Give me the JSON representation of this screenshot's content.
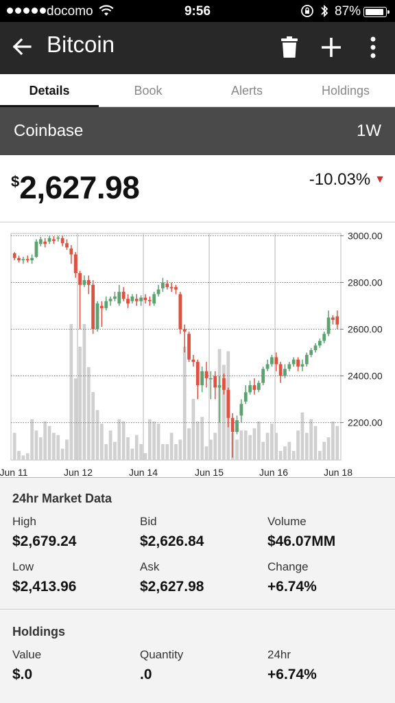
{
  "status": {
    "carrier": "docomo",
    "time": "9:56",
    "battery": "87%",
    "battery_level": 0.87
  },
  "header": {
    "title": "Bitcoin",
    "icons": [
      "back-arrow-icon",
      "trash-icon",
      "plus-icon",
      "more-vertical-icon"
    ]
  },
  "tabs": [
    {
      "label": "Details",
      "active": true
    },
    {
      "label": "Book",
      "active": false
    },
    {
      "label": "Alerts",
      "active": false
    },
    {
      "label": "Holdings",
      "active": false
    }
  ],
  "exchange": {
    "name": "Coinbase",
    "range": "1W"
  },
  "price": {
    "currency": "$",
    "value": "2,627.98",
    "change": "-10.03%",
    "direction": "down"
  },
  "colors": {
    "up": "#5aa36e",
    "down": "#e0503e",
    "volume": "#d0d0d0",
    "header": "#282828",
    "exchange_bar": "#4a4a4a"
  },
  "chart_data": {
    "type": "candlestick",
    "y_ticks": [
      "3000.00",
      "2800.00",
      "2600.00",
      "2400.00",
      "2200.00"
    ],
    "ylim": [
      2040,
      3010
    ],
    "x_tick_labels": [
      "Jun 11",
      "Jun 12",
      "Jun 14",
      "Jun 15",
      "Jun 16",
      "Jun 18"
    ],
    "grid": true,
    "candles": [
      [
        2925,
        2905,
        2930,
        2895
      ],
      [
        2905,
        2895,
        2915,
        2885
      ],
      [
        2895,
        2900,
        2910,
        2880
      ],
      [
        2900,
        2895,
        2915,
        2885
      ],
      [
        2895,
        2905,
        2920,
        2880
      ],
      [
        2910,
        2975,
        2985,
        2905
      ],
      [
        2965,
        2985,
        2995,
        2955
      ],
      [
        2975,
        2965,
        2990,
        2950
      ],
      [
        2975,
        2990,
        3000,
        2965
      ],
      [
        2985,
        2978,
        2998,
        2965
      ],
      [
        2988,
        2992,
        3000,
        2975
      ],
      [
        2990,
        2968,
        3000,
        2955
      ],
      [
        2968,
        2950,
        2985,
        2940
      ],
      [
        2945,
        2920,
        2960,
        2880
      ],
      [
        2920,
        2840,
        2930,
        2820
      ],
      [
        2840,
        2790,
        2850,
        2600
      ],
      [
        2790,
        2810,
        2830,
        2780
      ],
      [
        2810,
        2790,
        2830,
        2750
      ],
      [
        2790,
        2600,
        2810,
        2580
      ],
      [
        2600,
        2710,
        2720,
        2590
      ],
      [
        2700,
        2690,
        2720,
        2610
      ],
      [
        2690,
        2720,
        2740,
        2680
      ],
      [
        2720,
        2730,
        2740,
        2700
      ],
      [
        2730,
        2740,
        2760,
        2720
      ],
      [
        2710,
        2760,
        2790,
        2700
      ],
      [
        2760,
        2730,
        2780,
        2720
      ],
      [
        2730,
        2710,
        2750,
        2690
      ],
      [
        2720,
        2740,
        2750,
        2710
      ],
      [
        2730,
        2720,
        2750,
        2700
      ],
      [
        2720,
        2735,
        2745,
        2700
      ],
      [
        2735,
        2725,
        2750,
        2710
      ],
      [
        2725,
        2720,
        2740,
        2700
      ],
      [
        2710,
        2750,
        2760,
        2700
      ],
      [
        2750,
        2770,
        2790,
        2740
      ],
      [
        2775,
        2800,
        2820,
        2760
      ],
      [
        2795,
        2780,
        2810,
        2770
      ],
      [
        2780,
        2775,
        2800,
        2760
      ],
      [
        2780,
        2770,
        2790,
        2750
      ],
      [
        2750,
        2600,
        2760,
        2580
      ],
      [
        2600,
        2590,
        2620,
        2500
      ],
      [
        2580,
        2470,
        2590,
        2460
      ],
      [
        2470,
        2460,
        2490,
        2440
      ],
      [
        2460,
        2360,
        2470,
        2300
      ],
      [
        2360,
        2420,
        2440,
        2330
      ],
      [
        2420,
        2390,
        2460,
        2350
      ],
      [
        2390,
        2390,
        2420,
        2300
      ],
      [
        2400,
        2350,
        2420,
        2300
      ],
      [
        2350,
        2360,
        2400,
        2200
      ],
      [
        2390,
        2340,
        2410,
        2320
      ],
      [
        2340,
        2220,
        2350,
        2180
      ],
      [
        2220,
        2160,
        2240,
        2050
      ],
      [
        2160,
        2210,
        2230,
        2150
      ],
      [
        2230,
        2280,
        2300,
        2200
      ],
      [
        2290,
        2330,
        2360,
        2280
      ],
      [
        2330,
        2360,
        2380,
        2320
      ],
      [
        2360,
        2340,
        2390,
        2320
      ],
      [
        2340,
        2370,
        2380,
        2330
      ],
      [
        2370,
        2430,
        2440,
        2360
      ],
      [
        2430,
        2450,
        2470,
        2420
      ],
      [
        2450,
        2480,
        2490,
        2440
      ],
      [
        2480,
        2450,
        2500,
        2420
      ],
      [
        2450,
        2400,
        2460,
        2370
      ],
      [
        2400,
        2430,
        2450,
        2390
      ],
      [
        2430,
        2450,
        2460,
        2420
      ],
      [
        2450,
        2470,
        2480,
        2440
      ],
      [
        2470,
        2440,
        2480,
        2420
      ],
      [
        2440,
        2450,
        2470,
        2420
      ],
      [
        2450,
        2490,
        2500,
        2440
      ],
      [
        2490,
        2510,
        2520,
        2480
      ],
      [
        2510,
        2530,
        2540,
        2500
      ],
      [
        2530,
        2550,
        2560,
        2520
      ],
      [
        2550,
        2580,
        2590,
        2540
      ],
      [
        2580,
        2650,
        2680,
        2570
      ],
      [
        2650,
        2640,
        2660,
        2620
      ],
      [
        2655,
        2620,
        2680,
        2600
      ]
    ],
    "volume": [
      0.12,
      0.04,
      0.02,
      0.03,
      0.18,
      0.13,
      0.1,
      0.17,
      0.15,
      0.12,
      0.11,
      0.05,
      0.09,
      0.6,
      0.36,
      0.5,
      0.6,
      0.41,
      0.3,
      0.22,
      0.16,
      0.07,
      0.13,
      0.08,
      0.18,
      0.17,
      0.1,
      0.05,
      0.11,
      0.07,
      0.03,
      0.18,
      0.17,
      0.16,
      0.07,
      0.07,
      0.12,
      0.07,
      0.09,
      0.5,
      0.14,
      0.27,
      0.17,
      0.19,
      0.06,
      0.09,
      0.12,
      0.49,
      0.42,
      0.48,
      0.12,
      0.09,
      0.13,
      0.13,
      0.11,
      0.14,
      0.17,
      0.08,
      0.12,
      0.16,
      0.12,
      0.04,
      0.06,
      0.08,
      0.04,
      0.13,
      0.21,
      0.12,
      0.18,
      0.15,
      0.04,
      0.08,
      0.1,
      0.17,
      0.15
    ]
  },
  "market": {
    "title": "24hr Market Data",
    "items": [
      {
        "label": "High",
        "value": "$2,679.24"
      },
      {
        "label": "Bid",
        "value": "$2,626.84"
      },
      {
        "label": "Volume",
        "value": "$46.07MM"
      },
      {
        "label": "Low",
        "value": "$2,413.96"
      },
      {
        "label": "Ask",
        "value": "$2,627.98"
      },
      {
        "label": "Change",
        "value": "+6.74%"
      }
    ]
  },
  "holdings": {
    "title": "Holdings",
    "items": [
      {
        "label": "Value",
        "value": "$.0"
      },
      {
        "label": "Quantity",
        "value": ".0"
      },
      {
        "label": "24hr",
        "value": "+6.74%"
      }
    ]
  }
}
